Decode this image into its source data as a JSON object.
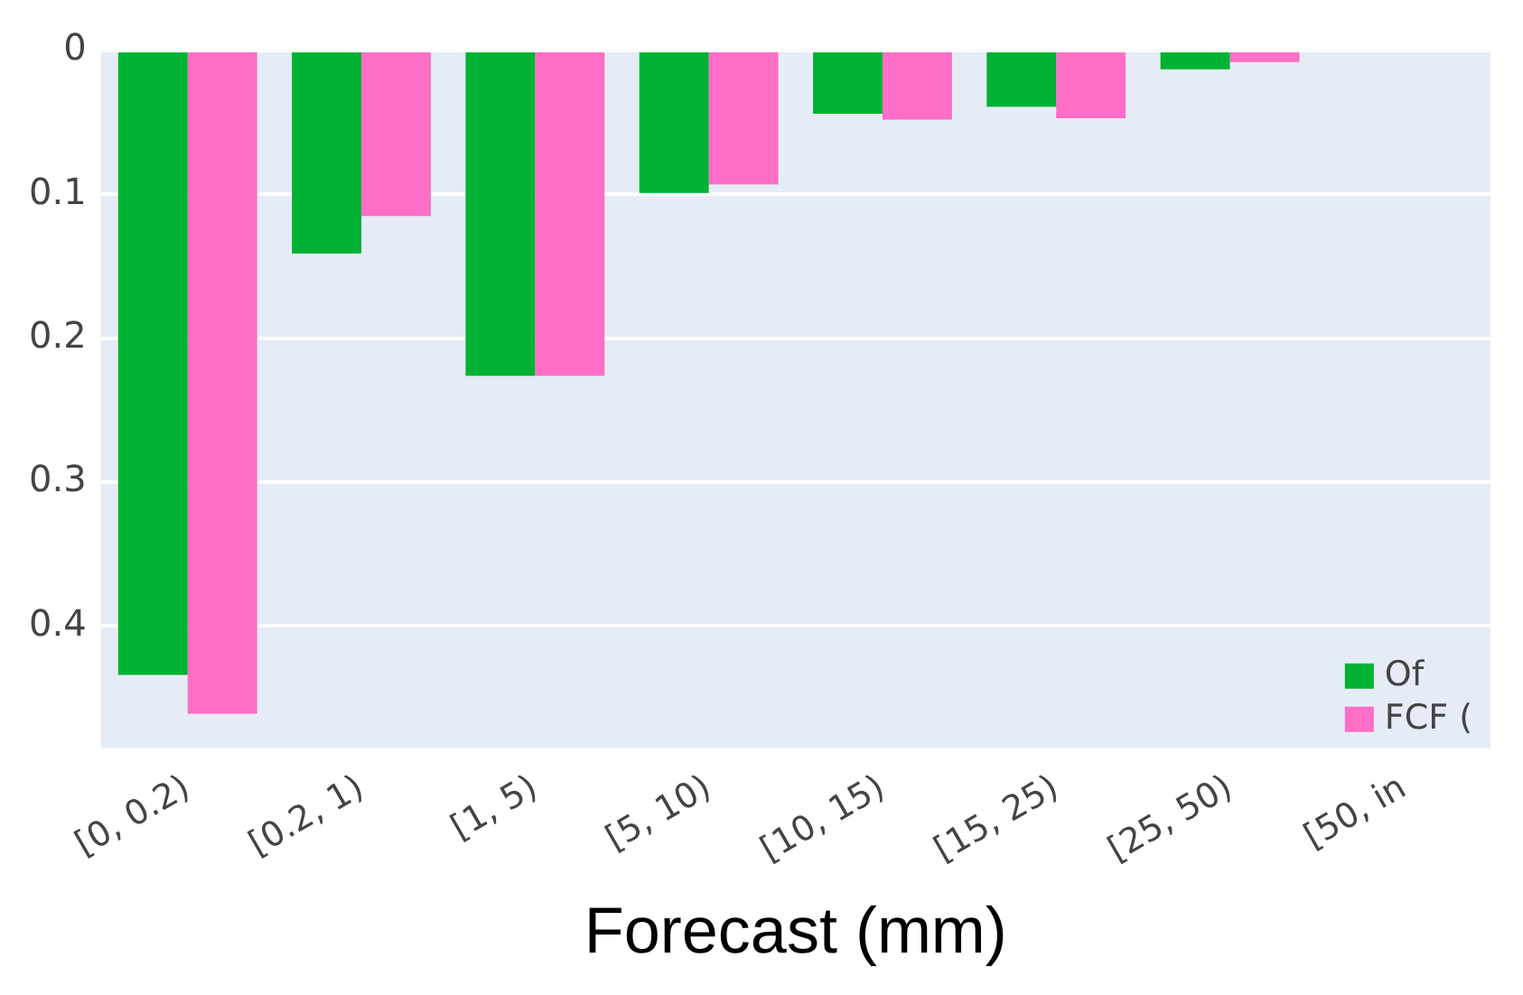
{
  "chart_data": {
    "type": "bar",
    "xlabel": "Forecast (mm)",
    "categories": [
      "[0, 0.2)",
      "[0.2, 1)",
      "[1, 5)",
      "[5, 10)",
      "[10, 15)",
      "[15, 25)",
      "[25, 50)",
      "[50, in"
    ],
    "series": [
      {
        "name": "Of",
        "color": "#00b233",
        "values": [
          0.434,
          0.141,
          0.226,
          0.099,
          0.044,
          0.039,
          0.013,
          null
        ]
      },
      {
        "name": "FCF (",
        "color": "#ff6ec7",
        "values": [
          0.461,
          0.115,
          0.226,
          0.093,
          0.048,
          0.047,
          0.008,
          null
        ]
      }
    ],
    "ylim": [
      0.485,
      0
    ],
    "yticks": [
      0,
      0.1,
      0.2,
      0.3,
      0.4
    ],
    "grid": "y",
    "legend": "bottom right"
  }
}
